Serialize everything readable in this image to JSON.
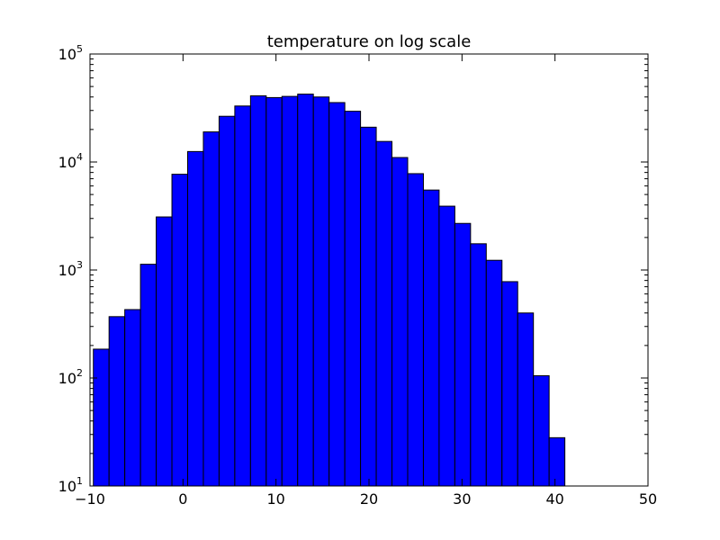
{
  "chart_data": {
    "type": "bar",
    "title": "temperature on log scale",
    "xlabel": "",
    "ylabel": "",
    "y_scale": "log",
    "xlim": [
      -10,
      50
    ],
    "ylim": [
      10,
      100000
    ],
    "grid": false,
    "x_ticks": [
      -10,
      0,
      10,
      20,
      30,
      40,
      50
    ],
    "x_tick_labels": [
      "−10",
      "0",
      "10",
      "20",
      "30",
      "40",
      "50"
    ],
    "y_ticks": [
      10,
      100,
      1000,
      10000,
      100000
    ],
    "y_tick_labels": [
      {
        "base": "10",
        "exp": "1"
      },
      {
        "base": "10",
        "exp": "2"
      },
      {
        "base": "10",
        "exp": "3"
      },
      {
        "base": "10",
        "exp": "4"
      },
      {
        "base": "10",
        "exp": "5"
      }
    ],
    "bar_color": "#0000ff",
    "edge_color": "#000000",
    "bins": [
      {
        "x0": -9.64,
        "x1": -7.95,
        "count": 185
      },
      {
        "x0": -7.95,
        "x1": -6.26,
        "count": 370
      },
      {
        "x0": -6.26,
        "x1": -4.57,
        "count": 430
      },
      {
        "x0": -4.57,
        "x1": -2.88,
        "count": 1130
      },
      {
        "x0": -2.88,
        "x1": -1.19,
        "count": 3100
      },
      {
        "x0": -1.19,
        "x1": 0.5,
        "count": 7700
      },
      {
        "x0": 0.5,
        "x1": 2.19,
        "count": 12500
      },
      {
        "x0": 2.19,
        "x1": 3.88,
        "count": 19000
      },
      {
        "x0": 3.88,
        "x1": 5.57,
        "count": 26500
      },
      {
        "x0": 5.57,
        "x1": 7.26,
        "count": 33000
      },
      {
        "x0": 7.26,
        "x1": 8.95,
        "count": 41000
      },
      {
        "x0": 8.95,
        "x1": 10.64,
        "count": 39500
      },
      {
        "x0": 10.64,
        "x1": 12.33,
        "count": 40500
      },
      {
        "x0": 12.33,
        "x1": 14.02,
        "count": 42500
      },
      {
        "x0": 14.02,
        "x1": 15.71,
        "count": 40000
      },
      {
        "x0": 15.71,
        "x1": 17.4,
        "count": 35500
      },
      {
        "x0": 17.4,
        "x1": 19.09,
        "count": 29500
      },
      {
        "x0": 19.09,
        "x1": 20.78,
        "count": 21000
      },
      {
        "x0": 20.78,
        "x1": 22.47,
        "count": 15500
      },
      {
        "x0": 22.47,
        "x1": 24.16,
        "count": 11000
      },
      {
        "x0": 24.16,
        "x1": 25.85,
        "count": 7800
      },
      {
        "x0": 25.85,
        "x1": 27.54,
        "count": 5500
      },
      {
        "x0": 27.54,
        "x1": 29.23,
        "count": 3900
      },
      {
        "x0": 29.23,
        "x1": 30.92,
        "count": 2700
      },
      {
        "x0": 30.92,
        "x1": 32.61,
        "count": 1750
      },
      {
        "x0": 32.61,
        "x1": 34.3,
        "count": 1230
      },
      {
        "x0": 34.3,
        "x1": 35.99,
        "count": 780
      },
      {
        "x0": 35.99,
        "x1": 37.68,
        "count": 400
      },
      {
        "x0": 37.68,
        "x1": 39.37,
        "count": 105
      },
      {
        "x0": 39.37,
        "x1": 41.06,
        "count": 28
      }
    ]
  }
}
